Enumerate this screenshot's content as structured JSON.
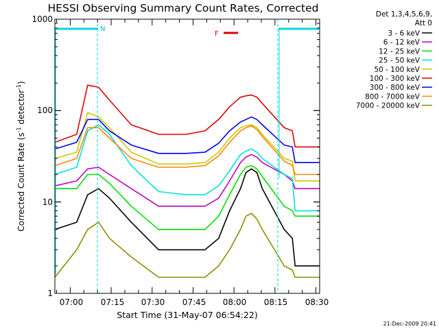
{
  "chart_data": {
    "type": "line",
    "title": "HESSI Observing Summary Count Rates, Corrected",
    "xlabel": "Start Time (31-May-07 06:54:22)",
    "ylabel_main": "Corrected Count Rate (s",
    "ylabel_sup": "-1",
    "ylabel_mid": " detector",
    "ylabel_end": ")",
    "yscale": "log",
    "ylim": [
      1,
      1000
    ],
    "xlim_minutes": [
      0,
      97
    ],
    "x_ticks": [
      "07:00",
      "07:15",
      "07:30",
      "07:45",
      "08:00",
      "08:15",
      "08:30"
    ],
    "y_ticks": [
      "1",
      "10",
      "100",
      "1000"
    ],
    "legend_header": [
      "Det 1,3,4,5,6,9,",
      "Att 0"
    ],
    "legend_position": "right",
    "footer_date": "21-Dec-2009 20:41",
    "flags": {
      "N": "N",
      "F": "F"
    },
    "series": [
      {
        "name": "3 - 6 keV",
        "color": "#000000",
        "x": [
          0,
          8,
          12,
          16,
          20,
          28,
          38,
          48,
          55,
          60,
          64,
          68,
          70,
          72,
          74,
          76,
          84,
          87,
          88,
          97
        ],
        "y": [
          5,
          6,
          12,
          14,
          11,
          6,
          3,
          3,
          3,
          4,
          8,
          14,
          21,
          23,
          21,
          14,
          5,
          4,
          2,
          2
        ]
      },
      {
        "name": "6 - 12 keV",
        "color": "#c000c0",
        "x": [
          0,
          8,
          12,
          16,
          20,
          28,
          38,
          48,
          55,
          60,
          64,
          68,
          70,
          72,
          74,
          76,
          84,
          87,
          88,
          97
        ],
        "y": [
          15,
          17,
          23,
          24,
          20,
          14,
          9,
          9,
          9,
          11,
          17,
          27,
          31,
          33,
          31,
          27,
          20,
          17,
          14,
          14
        ]
      },
      {
        "name": "12 - 25 keV",
        "color": "#00e000",
        "x": [
          0,
          8,
          12,
          16,
          20,
          28,
          38,
          48,
          55,
          60,
          64,
          68,
          70,
          72,
          74,
          76,
          84,
          87,
          88,
          97
        ],
        "y": [
          14,
          14,
          20,
          20,
          16,
          9,
          5,
          5,
          5,
          7,
          12,
          20,
          24,
          25,
          23,
          19,
          9,
          8,
          7,
          7
        ]
      },
      {
        "name": "25 - 50 keV",
        "color": "#00e0e0",
        "x": [
          0,
          8,
          12,
          16,
          20,
          28,
          38,
          48,
          55,
          60,
          64,
          68,
          70,
          72,
          74,
          76,
          84,
          87,
          88,
          97
        ],
        "y": [
          20,
          24,
          60,
          70,
          55,
          25,
          13,
          12,
          12,
          15,
          22,
          33,
          36,
          38,
          35,
          30,
          20,
          18,
          8,
          8
        ]
      },
      {
        "name": "50 - 100 keV",
        "color": "#c8c800",
        "x": [
          0,
          8,
          12,
          16,
          20,
          28,
          38,
          48,
          55,
          60,
          64,
          68,
          70,
          72,
          74,
          76,
          84,
          87,
          88,
          97
        ],
        "y": [
          30,
          35,
          95,
          85,
          65,
          35,
          26,
          26,
          27,
          35,
          50,
          65,
          68,
          70,
          65,
          55,
          30,
          28,
          17,
          17
        ]
      },
      {
        "name": "100 - 300 keV",
        "color": "#e00000",
        "x": [
          0,
          8,
          12,
          16,
          20,
          28,
          38,
          48,
          55,
          60,
          64,
          68,
          70,
          72,
          74,
          76,
          84,
          87,
          88,
          97
        ],
        "y": [
          45,
          55,
          190,
          180,
          130,
          70,
          55,
          55,
          60,
          80,
          110,
          140,
          145,
          148,
          140,
          120,
          65,
          60,
          40,
          40
        ]
      },
      {
        "name": "300 - 800 keV",
        "color": "#0000ee",
        "x": [
          0,
          8,
          12,
          16,
          20,
          28,
          38,
          48,
          55,
          60,
          64,
          68,
          70,
          72,
          74,
          76,
          84,
          87,
          88,
          97
        ],
        "y": [
          38,
          45,
          80,
          80,
          60,
          42,
          34,
          34,
          35,
          44,
          60,
          75,
          80,
          85,
          80,
          70,
          42,
          40,
          27,
          27
        ]
      },
      {
        "name": "800 - 7000 keV",
        "color": "#ff8800",
        "x": [
          0,
          8,
          12,
          16,
          20,
          28,
          38,
          48,
          55,
          60,
          64,
          68,
          70,
          72,
          74,
          76,
          84,
          87,
          88,
          97
        ],
        "y": [
          25,
          30,
          65,
          65,
          50,
          30,
          24,
          24,
          25,
          32,
          45,
          60,
          65,
          68,
          62,
          52,
          28,
          25,
          20,
          20
        ]
      },
      {
        "name": "7000 - 20000 keV",
        "color": "#8c8c00",
        "x": [
          0,
          8,
          12,
          16,
          20,
          28,
          38,
          48,
          55,
          60,
          64,
          68,
          70,
          72,
          74,
          76,
          84,
          87,
          88,
          97
        ],
        "y": [
          1.5,
          3,
          5,
          6,
          4,
          2.5,
          1.5,
          1.5,
          1.5,
          2,
          3,
          5,
          7,
          7.5,
          6.5,
          5,
          2,
          1.8,
          1.5,
          1.5
        ]
      }
    ]
  }
}
